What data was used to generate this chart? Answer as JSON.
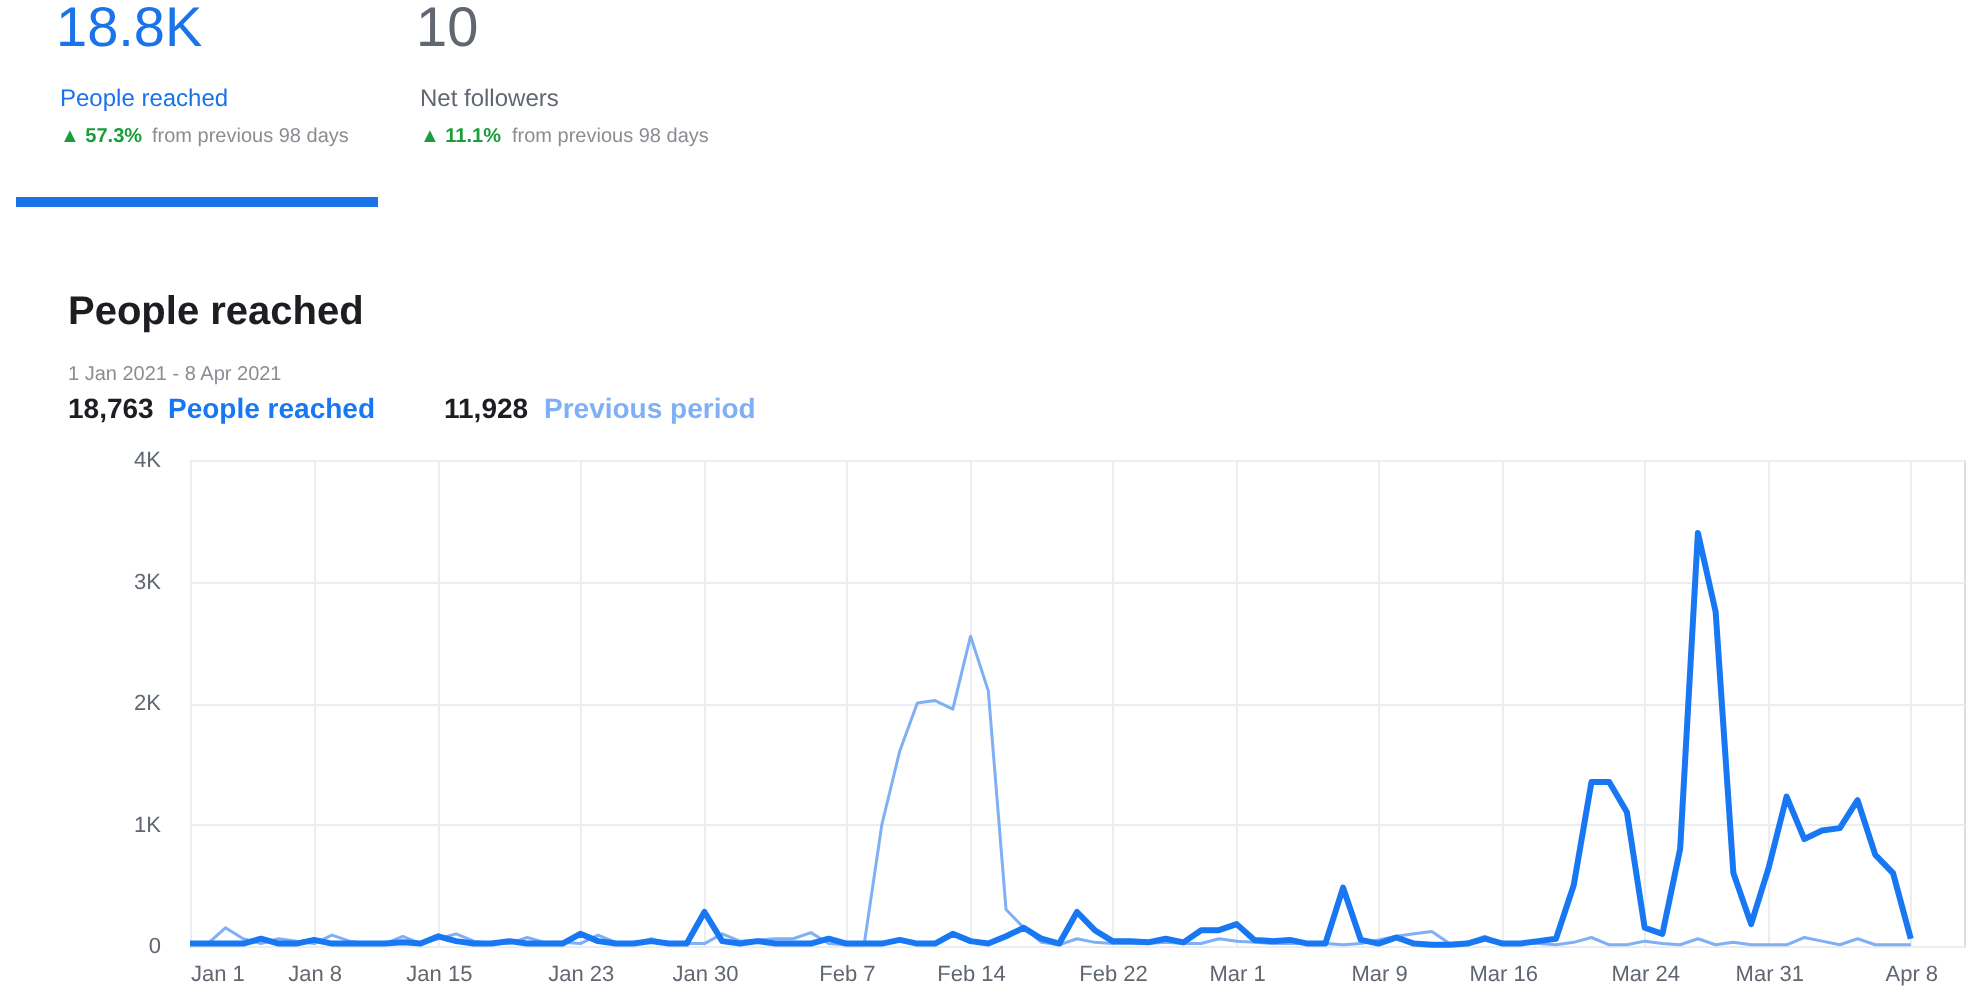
{
  "chart_data": {
    "type": "line",
    "title": "People reached",
    "subtitle": "1 Jan 2021 - 8 Apr 2021",
    "legend": "top left",
    "grid": true,
    "annotations": [
      "18.8K",
      "People reached",
      "▲ 57.3%",
      "from previous 98 days",
      "10",
      "Net followers",
      "▲ 11.1%",
      "from previous 98 days",
      "18,763",
      "11,928"
    ],
    "x": [
      "2021-01-01",
      "2021-01-02",
      "2021-01-03",
      "2021-01-04",
      "2021-01-05",
      "2021-01-06",
      "2021-01-07",
      "2021-01-08",
      "2021-01-09",
      "2021-01-10",
      "2021-01-11",
      "2021-01-12",
      "2021-01-13",
      "2021-01-14",
      "2021-01-15",
      "2021-01-16",
      "2021-01-17",
      "2021-01-18",
      "2021-01-19",
      "2021-01-20",
      "2021-01-21",
      "2021-01-22",
      "2021-01-23",
      "2021-01-24",
      "2021-01-25",
      "2021-01-26",
      "2021-01-27",
      "2021-01-28",
      "2021-01-29",
      "2021-01-30",
      "2021-01-31",
      "2021-02-01",
      "2021-02-02",
      "2021-02-03",
      "2021-02-04",
      "2021-02-05",
      "2021-02-06",
      "2021-02-07",
      "2021-02-08",
      "2021-02-09",
      "2021-02-10",
      "2021-02-11",
      "2021-02-12",
      "2021-02-13",
      "2021-02-14",
      "2021-02-15",
      "2021-02-16",
      "2021-02-17",
      "2021-02-18",
      "2021-02-19",
      "2021-02-20",
      "2021-02-21",
      "2021-02-22",
      "2021-02-23",
      "2021-02-24",
      "2021-02-25",
      "2021-02-26",
      "2021-02-27",
      "2021-02-28",
      "2021-03-01",
      "2021-03-02",
      "2021-03-03",
      "2021-03-04",
      "2021-03-05",
      "2021-03-06",
      "2021-03-07",
      "2021-03-08",
      "2021-03-09",
      "2021-03-10",
      "2021-03-11",
      "2021-03-12",
      "2021-03-13",
      "2021-03-14",
      "2021-03-15",
      "2021-03-16",
      "2021-03-17",
      "2021-03-18",
      "2021-03-19",
      "2021-03-20",
      "2021-03-21",
      "2021-03-22",
      "2021-03-23",
      "2021-03-24",
      "2021-03-25",
      "2021-03-26",
      "2021-03-27",
      "2021-03-28",
      "2021-03-29",
      "2021-03-30",
      "2021-03-31",
      "2021-04-01",
      "2021-04-02",
      "2021-04-03",
      "2021-04-04",
      "2021-04-05",
      "2021-04-06",
      "2021-04-07",
      "2021-04-08"
    ],
    "series": [
      {
        "name": "People reached",
        "color": "#1877f2",
        "values": [
          20,
          20,
          20,
          20,
          60,
          20,
          20,
          50,
          20,
          20,
          20,
          20,
          30,
          20,
          80,
          40,
          20,
          20,
          40,
          20,
          20,
          20,
          100,
          40,
          20,
          20,
          40,
          20,
          20,
          280,
          40,
          20,
          40,
          20,
          20,
          20,
          60,
          20,
          20,
          20,
          50,
          20,
          20,
          100,
          40,
          20,
          80,
          150,
          60,
          20,
          280,
          130,
          40,
          40,
          30,
          60,
          30,
          130,
          130,
          180,
          50,
          40,
          50,
          20,
          20,
          480,
          50,
          20,
          70,
          20,
          10,
          10,
          20,
          60,
          20,
          20,
          40,
          60,
          500,
          1350,
          1350,
          1100,
          150,
          100,
          800,
          3400,
          2750,
          600,
          180,
          650,
          1230,
          880,
          950,
          970,
          1200,
          750,
          600,
          60
        ]
      },
      {
        "name": "Previous period",
        "color": "#7fb0f5",
        "values": [
          20,
          20,
          150,
          60,
          20,
          60,
          40,
          20,
          90,
          40,
          20,
          20,
          80,
          20,
          60,
          100,
          40,
          20,
          20,
          70,
          30,
          30,
          20,
          90,
          30,
          20,
          60,
          20,
          20,
          20,
          100,
          40,
          50,
          60,
          60,
          110,
          20,
          10,
          10,
          1000,
          1600,
          2000,
          2020,
          1950,
          2550,
          2100,
          300,
          150,
          30,
          10,
          60,
          30,
          20,
          20,
          20,
          30,
          20,
          20,
          60,
          40,
          30,
          20,
          20,
          20,
          20,
          10,
          20,
          50,
          80,
          100,
          120,
          20,
          30,
          80,
          20,
          20,
          20,
          10,
          30,
          70,
          10,
          10,
          40,
          20,
          10,
          60,
          10,
          30,
          10,
          10,
          10,
          70,
          40,
          10,
          60,
          10,
          10,
          10
        ]
      }
    ],
    "xlim": [
      "2021-01-01",
      "2021-04-11"
    ],
    "xticks": [
      {
        "value": "2021-01-01",
        "label": "Jan 1"
      },
      {
        "value": "2021-01-08",
        "label": "Jan 8"
      },
      {
        "value": "2021-01-15",
        "label": "Jan 15"
      },
      {
        "value": "2021-01-23",
        "label": "Jan 23"
      },
      {
        "value": "2021-01-30",
        "label": "Jan 30"
      },
      {
        "value": "2021-02-07",
        "label": "Feb 7"
      },
      {
        "value": "2021-02-14",
        "label": "Feb 14"
      },
      {
        "value": "2021-02-22",
        "label": "Feb 22"
      },
      {
        "value": "2021-03-01",
        "label": "Mar 1"
      },
      {
        "value": "2021-03-09",
        "label": "Mar 9"
      },
      {
        "value": "2021-03-16",
        "label": "Mar 16"
      },
      {
        "value": "2021-03-24",
        "label": "Mar 24"
      },
      {
        "value": "2021-03-31",
        "label": "Mar 31"
      },
      {
        "value": "2021-04-08",
        "label": "Apr 8"
      }
    ],
    "ylim": [
      0,
      4000
    ],
    "yticks": [
      0,
      {
        "value": 1000,
        "label": "1K"
      },
      {
        "value": 2000,
        "label": "2K"
      },
      {
        "value": 3000,
        "label": "3K"
      },
      {
        "value": 4000,
        "label": "4K"
      }
    ]
  }
}
